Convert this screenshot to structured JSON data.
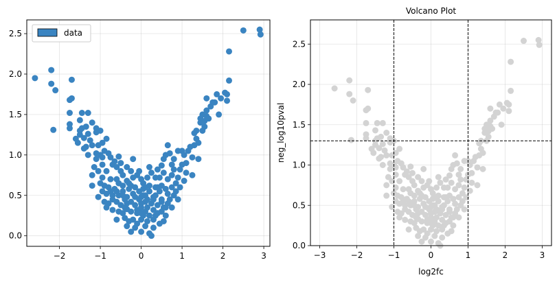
{
  "chart_data": [
    {
      "type": "scatter",
      "title": "",
      "xlabel": "",
      "ylabel": "",
      "xlim": [
        -2.8,
        3.15
      ],
      "ylim": [
        -0.13,
        2.67
      ],
      "xticks": [
        -2,
        -1,
        0,
        1,
        2,
        3
      ],
      "xtick_labels": [
        "−2",
        "−1",
        "0",
        "1",
        "2",
        "3"
      ],
      "yticks": [
        0.0,
        0.5,
        1.0,
        1.5,
        2.0,
        2.5
      ],
      "ytick_labels": [
        "0.0",
        "0.5",
        "1.0",
        "1.5",
        "2.0",
        "2.5"
      ],
      "grid": true,
      "legend": {
        "placement": "top-left",
        "entries": [
          "data"
        ]
      },
      "marker_color": "#3a84c1",
      "series": [
        {
          "name": "data",
          "color": "#3a84c1",
          "ref": "shared"
        }
      ]
    },
    {
      "type": "scatter",
      "title": "Volcano Plot",
      "xlabel": "log2fc",
      "ylabel": "neg_log10pval",
      "xlim": [
        -3.25,
        3.25
      ],
      "ylim": [
        0,
        2.8
      ],
      "xticks": [
        -3,
        -2,
        -1,
        0,
        1,
        2,
        3
      ],
      "xtick_labels": [
        "−3",
        "−2",
        "−1",
        "0",
        "1",
        "2",
        "3"
      ],
      "yticks": [
        0.0,
        0.5,
        1.0,
        1.5,
        2.0,
        2.5
      ],
      "ytick_labels": [
        "0.0",
        "0.5",
        "1.0",
        "1.5",
        "2.0",
        "2.5"
      ],
      "grid": true,
      "vlines": [
        -1,
        1
      ],
      "hlines": [
        1.3
      ],
      "threshold_line_color": "#000000",
      "marker_color": "#d3d3d3",
      "series": [
        {
          "name": "",
          "color": "#d3d3d3",
          "ref": "shared"
        }
      ]
    }
  ],
  "points": [
    [
      -2.6,
      1.95
    ],
    [
      -2.2,
      2.05
    ],
    [
      -2.2,
      1.88
    ],
    [
      -2.1,
      1.8
    ],
    [
      -2.15,
      1.31
    ],
    [
      -1.7,
      1.93
    ],
    [
      -1.75,
      1.68
    ],
    [
      -1.7,
      1.7
    ],
    [
      -1.75,
      1.52
    ],
    [
      -1.75,
      1.38
    ],
    [
      -1.75,
      1.33
    ],
    [
      -1.45,
      1.52
    ],
    [
      -1.5,
      1.43
    ],
    [
      -1.3,
      1.52
    ],
    [
      -1.45,
      1.33
    ],
    [
      -1.5,
      1.25
    ],
    [
      -1.35,
      1.35
    ],
    [
      -1.2,
      1.4
    ],
    [
      -1.4,
      1.21
    ],
    [
      -1.3,
      1.26
    ],
    [
      -1.1,
      1.33
    ],
    [
      -1.1,
      1.28
    ],
    [
      -1.0,
      1.3
    ],
    [
      -1.35,
      1.1
    ],
    [
      -1.2,
      1.12
    ],
    [
      -1.25,
      1.18
    ],
    [
      -1.05,
      1.12
    ],
    [
      -1.4,
      1.08
    ],
    [
      -1.3,
      1.0
    ],
    [
      -0.95,
      1.15
    ],
    [
      -0.9,
      1.05
    ],
    [
      -1.0,
      1.0
    ],
    [
      -0.95,
      0.97
    ],
    [
      -1.1,
      1.02
    ],
    [
      -0.8,
      1.02
    ],
    [
      -0.85,
      1.2
    ],
    [
      -1.15,
      0.85
    ],
    [
      -1.05,
      0.8
    ],
    [
      -0.95,
      0.88
    ],
    [
      -0.85,
      0.8
    ],
    [
      -0.7,
      0.88
    ],
    [
      -0.55,
      0.98
    ],
    [
      -0.5,
      0.9
    ],
    [
      -0.6,
      0.85
    ],
    [
      -0.5,
      0.8
    ],
    [
      -0.35,
      0.85
    ],
    [
      -0.45,
      0.75
    ],
    [
      -0.25,
      0.8
    ],
    [
      -1.2,
      0.75
    ],
    [
      -1.0,
      0.65
    ],
    [
      -0.9,
      0.62
    ],
    [
      -0.75,
      0.7
    ],
    [
      -0.6,
      0.7
    ],
    [
      -0.45,
      0.62
    ],
    [
      -0.35,
      0.68
    ],
    [
      -0.2,
      0.72
    ],
    [
      -0.1,
      0.75
    ],
    [
      0.0,
      0.7
    ],
    [
      0.05,
      0.65
    ],
    [
      0.15,
      0.72
    ],
    [
      0.25,
      0.78
    ],
    [
      0.35,
      0.72
    ],
    [
      0.4,
      0.82
    ],
    [
      0.5,
      0.87
    ],
    [
      0.55,
      0.78
    ],
    [
      0.65,
      0.7
    ],
    [
      0.75,
      0.75
    ],
    [
      0.8,
      0.82
    ],
    [
      0.9,
      0.72
    ],
    [
      0.85,
      0.65
    ],
    [
      -0.95,
      0.55
    ],
    [
      -0.85,
      0.52
    ],
    [
      -0.75,
      0.55
    ],
    [
      -0.65,
      0.58
    ],
    [
      -0.55,
      0.5
    ],
    [
      -0.45,
      0.55
    ],
    [
      -0.35,
      0.48
    ],
    [
      -0.3,
      0.58
    ],
    [
      -0.2,
      0.52
    ],
    [
      -0.15,
      0.6
    ],
    [
      -0.05,
      0.55
    ],
    [
      0.0,
      0.48
    ],
    [
      0.05,
      0.58
    ],
    [
      0.1,
      0.5
    ],
    [
      0.2,
      0.55
    ],
    [
      0.3,
      0.48
    ],
    [
      0.35,
      0.6
    ],
    [
      0.45,
      0.55
    ],
    [
      0.5,
      0.62
    ],
    [
      0.6,
      0.58
    ],
    [
      0.65,
      0.52
    ],
    [
      0.75,
      0.6
    ],
    [
      0.85,
      0.55
    ],
    [
      0.9,
      0.45
    ],
    [
      -1.05,
      0.48
    ],
    [
      -0.9,
      0.42
    ],
    [
      -0.8,
      0.4
    ],
    [
      -0.7,
      0.45
    ],
    [
      -0.6,
      0.42
    ],
    [
      -0.5,
      0.38
    ],
    [
      -0.4,
      0.45
    ],
    [
      -0.35,
      0.4
    ],
    [
      -0.25,
      0.42
    ],
    [
      -0.15,
      0.38
    ],
    [
      -0.05,
      0.45
    ],
    [
      0.0,
      0.4
    ],
    [
      0.1,
      0.42
    ],
    [
      0.15,
      0.35
    ],
    [
      0.25,
      0.4
    ],
    [
      0.3,
      0.45
    ],
    [
      0.4,
      0.38
    ],
    [
      0.5,
      0.42
    ],
    [
      0.55,
      0.35
    ],
    [
      0.65,
      0.4
    ],
    [
      0.7,
      0.45
    ],
    [
      -0.85,
      0.35
    ],
    [
      -0.7,
      0.32
    ],
    [
      -0.55,
      0.3
    ],
    [
      -0.45,
      0.28
    ],
    [
      -0.35,
      0.33
    ],
    [
      -0.25,
      0.3
    ],
    [
      -0.1,
      0.32
    ],
    [
      0.0,
      0.28
    ],
    [
      0.1,
      0.3
    ],
    [
      0.2,
      0.25
    ],
    [
      0.3,
      0.32
    ],
    [
      0.4,
      0.28
    ],
    [
      0.5,
      0.3
    ],
    [
      0.6,
      0.25
    ],
    [
      -0.4,
      0.22
    ],
    [
      -0.3,
      0.18
    ],
    [
      -0.2,
      0.2
    ],
    [
      -0.1,
      0.15
    ],
    [
      0.0,
      0.2
    ],
    [
      0.15,
      0.18
    ],
    [
      0.3,
      0.2
    ],
    [
      0.45,
      0.15
    ],
    [
      -0.35,
      0.12
    ],
    [
      -0.15,
      0.1
    ],
    [
      0.1,
      0.12
    ],
    [
      0.3,
      0.1
    ],
    [
      -0.25,
      0.05
    ],
    [
      0.0,
      0.05
    ],
    [
      0.2,
      0.03
    ],
    [
      0.25,
      0.0
    ],
    [
      0.55,
      0.18
    ],
    [
      -0.6,
      0.2
    ],
    [
      -0.6,
      0.55
    ],
    [
      -0.3,
      0.65
    ],
    [
      0.0,
      0.35
    ],
    [
      0.05,
      0.5
    ],
    [
      0.45,
      0.72
    ],
    [
      -0.8,
      0.6
    ],
    [
      -0.7,
      0.5
    ],
    [
      -0.1,
      0.28
    ],
    [
      0.1,
      0.6
    ],
    [
      0.35,
      0.25
    ],
    [
      0.6,
      0.35
    ],
    [
      -0.45,
      0.5
    ],
    [
      0.15,
      0.45
    ],
    [
      1.0,
      1.05
    ],
    [
      0.9,
      1.05
    ],
    [
      1.05,
      1.0
    ],
    [
      1.15,
      1.05
    ],
    [
      1.2,
      1.1
    ],
    [
      1.3,
      1.12
    ],
    [
      1.35,
      1.2
    ],
    [
      1.4,
      1.15
    ],
    [
      1.25,
      0.97
    ],
    [
      1.1,
      0.9
    ],
    [
      1.0,
      0.88
    ],
    [
      0.95,
      0.82
    ],
    [
      1.4,
      0.95
    ],
    [
      1.5,
      1.3
    ],
    [
      1.55,
      1.35
    ],
    [
      1.45,
      1.45
    ],
    [
      1.5,
      1.5
    ],
    [
      1.6,
      1.48
    ],
    [
      1.65,
      1.45
    ],
    [
      1.55,
      1.42
    ],
    [
      1.7,
      1.6
    ],
    [
      1.6,
      1.7
    ],
    [
      1.8,
      1.65
    ],
    [
      1.75,
      1.65
    ],
    [
      1.85,
      1.75
    ],
    [
      1.9,
      1.5
    ],
    [
      1.95,
      1.7
    ],
    [
      2.1,
      1.67
    ],
    [
      2.05,
      1.77
    ],
    [
      2.1,
      1.75
    ],
    [
      2.15,
      1.92
    ],
    [
      2.15,
      2.28
    ],
    [
      2.5,
      2.54
    ],
    [
      2.9,
      2.55
    ],
    [
      2.92,
      2.49
    ],
    [
      1.35,
      1.3
    ],
    [
      1.3,
      1.27
    ],
    [
      0.6,
      1.0
    ],
    [
      0.7,
      1.02
    ],
    [
      0.8,
      0.95
    ],
    [
      0.65,
      1.12
    ],
    [
      -1.55,
      1.15
    ],
    [
      -1.6,
      1.2
    ],
    [
      -0.65,
      0.92
    ],
    [
      -0.75,
      0.97
    ],
    [
      0.2,
      0.62
    ],
    [
      -0.2,
      0.95
    ],
    [
      1.25,
      0.75
    ],
    [
      1.1,
      0.78
    ],
    [
      -1.1,
      0.95
    ],
    [
      0.95,
      0.6
    ],
    [
      1.05,
      0.68
    ],
    [
      -1.2,
      0.62
    ],
    [
      0.75,
      0.35
    ],
    [
      0.8,
      0.5
    ],
    [
      -0.95,
      0.72
    ],
    [
      0.55,
      0.95
    ],
    [
      0.2,
      0.85
    ],
    [
      -0.05,
      0.8
    ],
    [
      -0.25,
      0.62
    ],
    [
      0.05,
      0.25
    ],
    [
      0.4,
      0.6
    ],
    [
      0.5,
      0.45
    ],
    [
      -0.55,
      0.65
    ],
    [
      1.45,
      1.4
    ],
    [
      1.6,
      1.55
    ],
    [
      0.75,
      0.88
    ],
    [
      -1.5,
      1.3
    ],
    [
      -0.4,
      0.35
    ],
    [
      0.35,
      0.5
    ],
    [
      -0.15,
      0.48
    ]
  ]
}
